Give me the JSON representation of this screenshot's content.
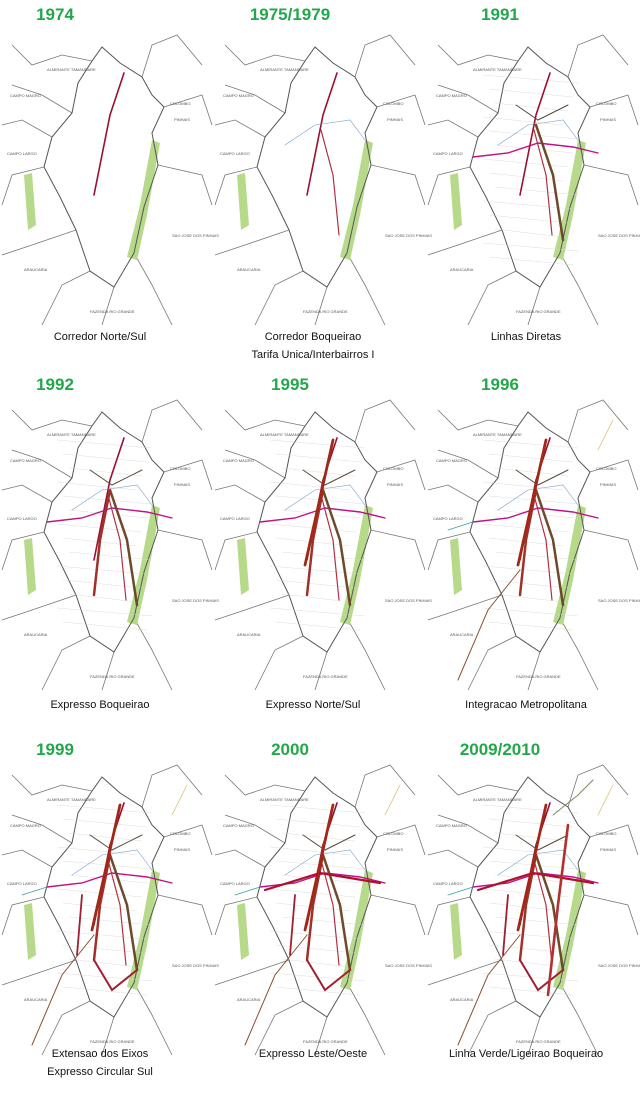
{
  "panels": [
    {
      "year": "1974",
      "caption": [
        "Corredor Norte/Sul"
      ]
    },
    {
      "year": "1975/1979",
      "caption": [
        "Corredor Boqueirao",
        "Tarifa Unica/Interbairros I"
      ]
    },
    {
      "year": "1991",
      "caption": [
        "Linhas Diretas"
      ]
    },
    {
      "year": "1992",
      "caption": [
        "Expresso Boqueirao"
      ]
    },
    {
      "year": "1995",
      "caption": [
        "Expresso Norte/Sul"
      ]
    },
    {
      "year": "1996",
      "caption": [
        "Integracao Metropolitana"
      ]
    },
    {
      "year": "1999",
      "caption": [
        "Extensao dos Eixos",
        "Expresso Circular Sul"
      ]
    },
    {
      "year": "2000",
      "caption": [
        "Expresso Leste/Oeste"
      ]
    },
    {
      "year": "2009/2010",
      "caption": [
        "Linha Verde/Ligeirao Boqueirao"
      ]
    }
  ],
  "map_labels": [
    "ALMIRANTE TAMANDARE",
    "CAMPO MAGRO",
    "COLOMBO",
    "PINHAIS",
    "CAMPO LARGO",
    "SAO JOSE DOS PINHAIS",
    "ARAUCARIA",
    "FAZENDA RIO GRANDE"
  ]
}
